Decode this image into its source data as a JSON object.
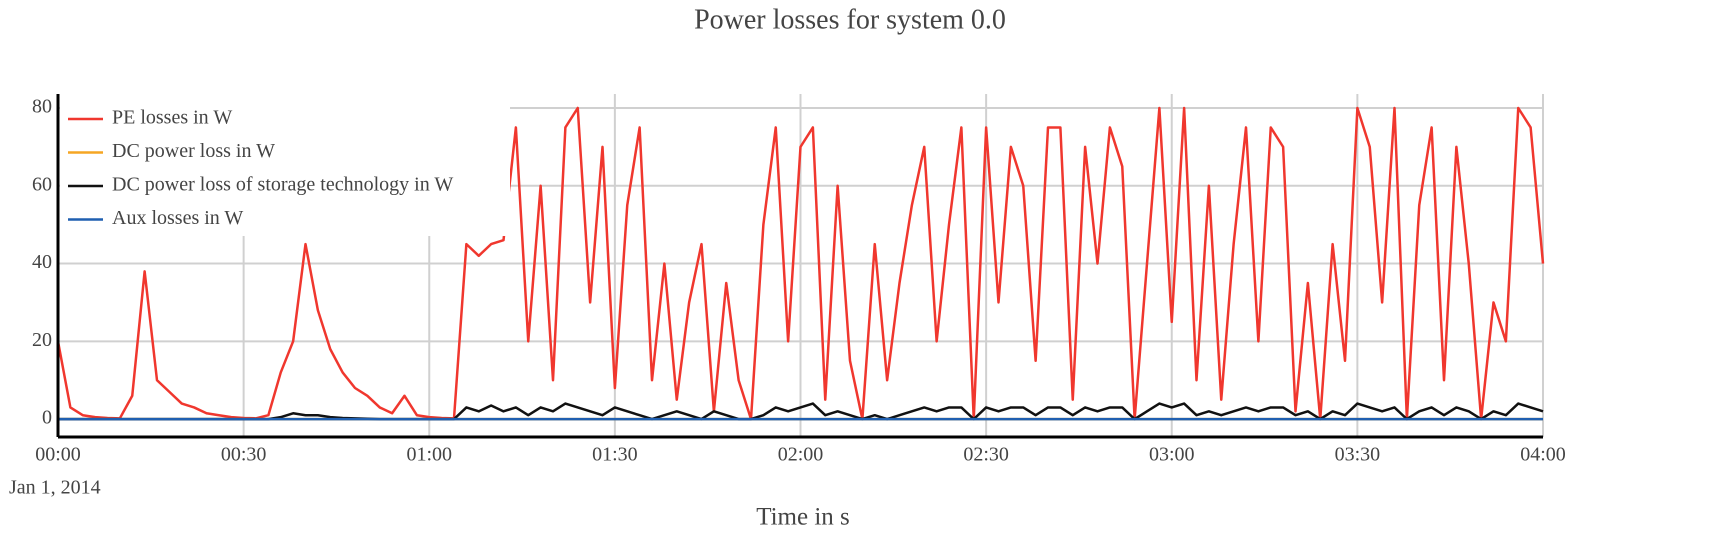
{
  "chart_data": {
    "type": "line",
    "title": "Power losses for system 0.0",
    "x_label": "Time in s",
    "x_date_label": "Jan 1, 2014",
    "x": [
      "2014-01-01 00:00",
      "2014-01-01 00:02",
      "2014-01-01 00:04",
      "2014-01-01 00:06",
      "2014-01-01 00:08",
      "2014-01-01 00:10",
      "2014-01-01 00:12",
      "2014-01-01 00:14",
      "2014-01-01 00:16",
      "2014-01-01 00:18",
      "2014-01-01 00:20",
      "2014-01-01 00:22",
      "2014-01-01 00:24",
      "2014-01-01 00:26",
      "2014-01-01 00:28",
      "2014-01-01 00:30",
      "2014-01-01 00:32",
      "2014-01-01 00:34",
      "2014-01-01 00:36",
      "2014-01-01 00:38",
      "2014-01-01 00:40",
      "2014-01-01 00:42",
      "2014-01-01 00:44",
      "2014-01-01 00:46",
      "2014-01-01 00:48",
      "2014-01-01 00:50",
      "2014-01-01 00:52",
      "2014-01-01 00:54",
      "2014-01-01 00:56",
      "2014-01-01 00:58",
      "2014-01-01 01:00",
      "2014-01-01 01:02",
      "2014-01-01 01:04",
      "2014-01-01 01:06",
      "2014-01-01 01:08",
      "2014-01-01 01:10",
      "2014-01-01 01:12",
      "2014-01-01 01:14",
      "2014-01-01 01:16",
      "2014-01-01 01:18",
      "2014-01-01 01:20",
      "2014-01-01 01:22",
      "2014-01-01 01:24",
      "2014-01-01 01:26",
      "2014-01-01 01:28",
      "2014-01-01 01:30",
      "2014-01-01 01:32",
      "2014-01-01 01:34",
      "2014-01-01 01:36",
      "2014-01-01 01:38",
      "2014-01-01 01:40",
      "2014-01-01 01:42",
      "2014-01-01 01:44",
      "2014-01-01 01:46",
      "2014-01-01 01:48",
      "2014-01-01 01:50",
      "2014-01-01 01:52",
      "2014-01-01 01:54",
      "2014-01-01 01:56",
      "2014-01-01 01:58",
      "2014-01-01 02:00",
      "2014-01-01 02:02",
      "2014-01-01 02:04",
      "2014-01-01 02:06",
      "2014-01-01 02:08",
      "2014-01-01 02:10",
      "2014-01-01 02:12",
      "2014-01-01 02:14",
      "2014-01-01 02:16",
      "2014-01-01 02:18",
      "2014-01-01 02:20",
      "2014-01-01 02:22",
      "2014-01-01 02:24",
      "2014-01-01 02:26",
      "2014-01-01 02:28",
      "2014-01-01 02:30",
      "2014-01-01 02:32",
      "2014-01-01 02:34",
      "2014-01-01 02:36",
      "2014-01-01 02:38",
      "2014-01-01 02:40",
      "2014-01-01 02:42",
      "2014-01-01 02:44",
      "2014-01-01 02:46",
      "2014-01-01 02:48",
      "2014-01-01 02:50",
      "2014-01-01 02:52",
      "2014-01-01 02:54",
      "2014-01-01 02:56",
      "2014-01-01 02:58",
      "2014-01-01 03:00",
      "2014-01-01 03:02",
      "2014-01-01 03:04",
      "2014-01-01 03:06",
      "2014-01-01 03:08",
      "2014-01-01 03:10",
      "2014-01-01 03:12",
      "2014-01-01 03:14",
      "2014-01-01 03:16",
      "2014-01-01 03:18",
      "2014-01-01 03:20",
      "2014-01-01 03:22",
      "2014-01-01 03:24",
      "2014-01-01 03:26",
      "2014-01-01 03:28",
      "2014-01-01 03:30",
      "2014-01-01 03:32",
      "2014-01-01 03:34",
      "2014-01-01 03:36",
      "2014-01-01 03:38",
      "2014-01-01 03:40",
      "2014-01-01 03:42",
      "2014-01-01 03:44",
      "2014-01-01 03:46",
      "2014-01-01 03:48",
      "2014-01-01 03:50",
      "2014-01-01 03:52",
      "2014-01-01 03:54",
      "2014-01-01 03:56",
      "2014-01-01 03:58",
      "2014-01-01 04:00"
    ],
    "series": [
      {
        "name": "PE losses in W",
        "color": "#f0372e",
        "values": [
          20,
          3,
          1,
          0.5,
          0.3,
          0.2,
          6,
          38,
          10,
          7,
          4,
          3,
          1.5,
          1,
          0.5,
          0.3,
          0.2,
          1,
          12,
          20,
          45,
          28,
          18,
          12,
          8,
          6,
          3,
          1.5,
          6,
          1,
          0.5,
          0.3,
          0.2,
          45,
          42,
          45,
          46,
          75,
          20,
          60,
          10,
          75,
          80,
          30,
          70,
          8,
          55,
          75,
          10,
          40,
          5,
          30,
          45,
          2,
          35,
          10,
          0,
          50,
          75,
          20,
          70,
          75,
          5,
          60,
          15,
          0,
          45,
          10,
          35,
          55,
          70,
          20,
          50,
          75,
          0,
          75,
          30,
          70,
          60,
          15,
          75,
          75,
          5,
          70,
          40,
          75,
          65,
          0,
          40,
          80,
          25,
          80,
          10,
          60,
          5,
          45,
          75,
          20,
          75,
          70,
          2,
          35,
          0,
          45,
          15,
          80,
          70,
          30,
          80,
          0,
          55,
          75,
          10,
          70,
          40,
          0,
          30,
          20,
          80,
          75,
          40
        ]
      },
      {
        "name": "DC power loss in W",
        "color": "#f5a623",
        "values": [
          0,
          0,
          0,
          0,
          0,
          0,
          0,
          0,
          0,
          0,
          0,
          0,
          0,
          0,
          0,
          0,
          0,
          0,
          0,
          0,
          0,
          0,
          0,
          0,
          0,
          0,
          0,
          0,
          0,
          0,
          0,
          0,
          0,
          0,
          0,
          0,
          0,
          0,
          0,
          0,
          0,
          0,
          0,
          0,
          0,
          0,
          0,
          0,
          0,
          0,
          0,
          0,
          0,
          0,
          0,
          0,
          0,
          0,
          0,
          0,
          0,
          0,
          0,
          0,
          0,
          0,
          0,
          0,
          0,
          0,
          0,
          0,
          0,
          0,
          0,
          0,
          0,
          0,
          0,
          0,
          0,
          0,
          0,
          0,
          0,
          0,
          0,
          0,
          0,
          0,
          0,
          0,
          0,
          0,
          0,
          0,
          0,
          0,
          0,
          0,
          0,
          0,
          0,
          0,
          0,
          0,
          0,
          0,
          0,
          0,
          0,
          0,
          0,
          0,
          0,
          0,
          0,
          0,
          0,
          0,
          0
        ]
      },
      {
        "name": "DC power loss of storage technology in W",
        "color": "#111111",
        "values": [
          0,
          0,
          0,
          0,
          0,
          0,
          0,
          0,
          0,
          0,
          0,
          0,
          0,
          0,
          0,
          0,
          0,
          0,
          0.5,
          1.5,
          1,
          1,
          0.5,
          0.3,
          0.2,
          0.1,
          0,
          0,
          0,
          0,
          0,
          0,
          0,
          3,
          2,
          3.5,
          2,
          3,
          1,
          3,
          2,
          4,
          3,
          2,
          1,
          3,
          2,
          1,
          0,
          1,
          2,
          1,
          0,
          2,
          1,
          0,
          0,
          1,
          3,
          2,
          3,
          4,
          1,
          2,
          1,
          0,
          1,
          0,
          1,
          2,
          3,
          2,
          3,
          3,
          0,
          3,
          2,
          3,
          3,
          1,
          3,
          3,
          1,
          3,
          2,
          3,
          3,
          0,
          2,
          4,
          3,
          4,
          1,
          2,
          1,
          2,
          3,
          2,
          3,
          3,
          1,
          2,
          0,
          2,
          1,
          4,
          3,
          2,
          3,
          0,
          2,
          3,
          1,
          3,
          2,
          0,
          2,
          1,
          4,
          3,
          2
        ]
      },
      {
        "name": "Aux losses in W",
        "color": "#1f5fb0",
        "values": [
          0,
          0,
          0,
          0,
          0,
          0,
          0,
          0,
          0,
          0,
          0,
          0,
          0,
          0,
          0,
          0,
          0,
          0,
          0,
          0,
          0,
          0,
          0,
          0,
          0,
          0,
          0,
          0,
          0,
          0,
          0,
          0,
          0,
          0,
          0,
          0,
          0,
          0,
          0,
          0,
          0,
          0,
          0,
          0,
          0,
          0,
          0,
          0,
          0,
          0,
          0,
          0,
          0,
          0,
          0,
          0,
          0,
          0,
          0,
          0,
          0,
          0,
          0,
          0,
          0,
          0,
          0,
          0,
          0,
          0,
          0,
          0,
          0,
          0,
          0,
          0,
          0,
          0,
          0,
          0,
          0,
          0,
          0,
          0,
          0,
          0,
          0,
          0,
          0,
          0,
          0,
          0,
          0,
          0,
          0,
          0,
          0,
          0,
          0,
          0,
          0,
          0,
          0,
          0,
          0,
          0,
          0,
          0,
          0,
          0,
          0,
          0,
          0,
          0,
          0,
          0,
          0,
          0,
          0,
          0,
          0
        ]
      }
    ],
    "xlim": [
      "2014-01-01 00:00",
      "2014-01-01 04:00"
    ],
    "xticks": [
      {
        "value": "2014-01-01 00:00",
        "label": "00:00"
      },
      {
        "value": "2014-01-01 00:30",
        "label": "00:30"
      },
      {
        "value": "2014-01-01 01:00",
        "label": "01:00"
      },
      {
        "value": "2014-01-01 01:30",
        "label": "01:30"
      },
      {
        "value": "2014-01-01 02:00",
        "label": "02:00"
      },
      {
        "value": "2014-01-01 02:30",
        "label": "02:30"
      },
      {
        "value": "2014-01-01 03:00",
        "label": "03:00"
      },
      {
        "value": "2014-01-01 03:30",
        "label": "03:30"
      },
      {
        "value": "2014-01-01 04:00",
        "label": "04:00"
      }
    ],
    "ylim": [
      -4.6,
      83.6
    ],
    "yticks": [
      0,
      20,
      40,
      60,
      80
    ],
    "grid": true,
    "legend": "top-left"
  }
}
